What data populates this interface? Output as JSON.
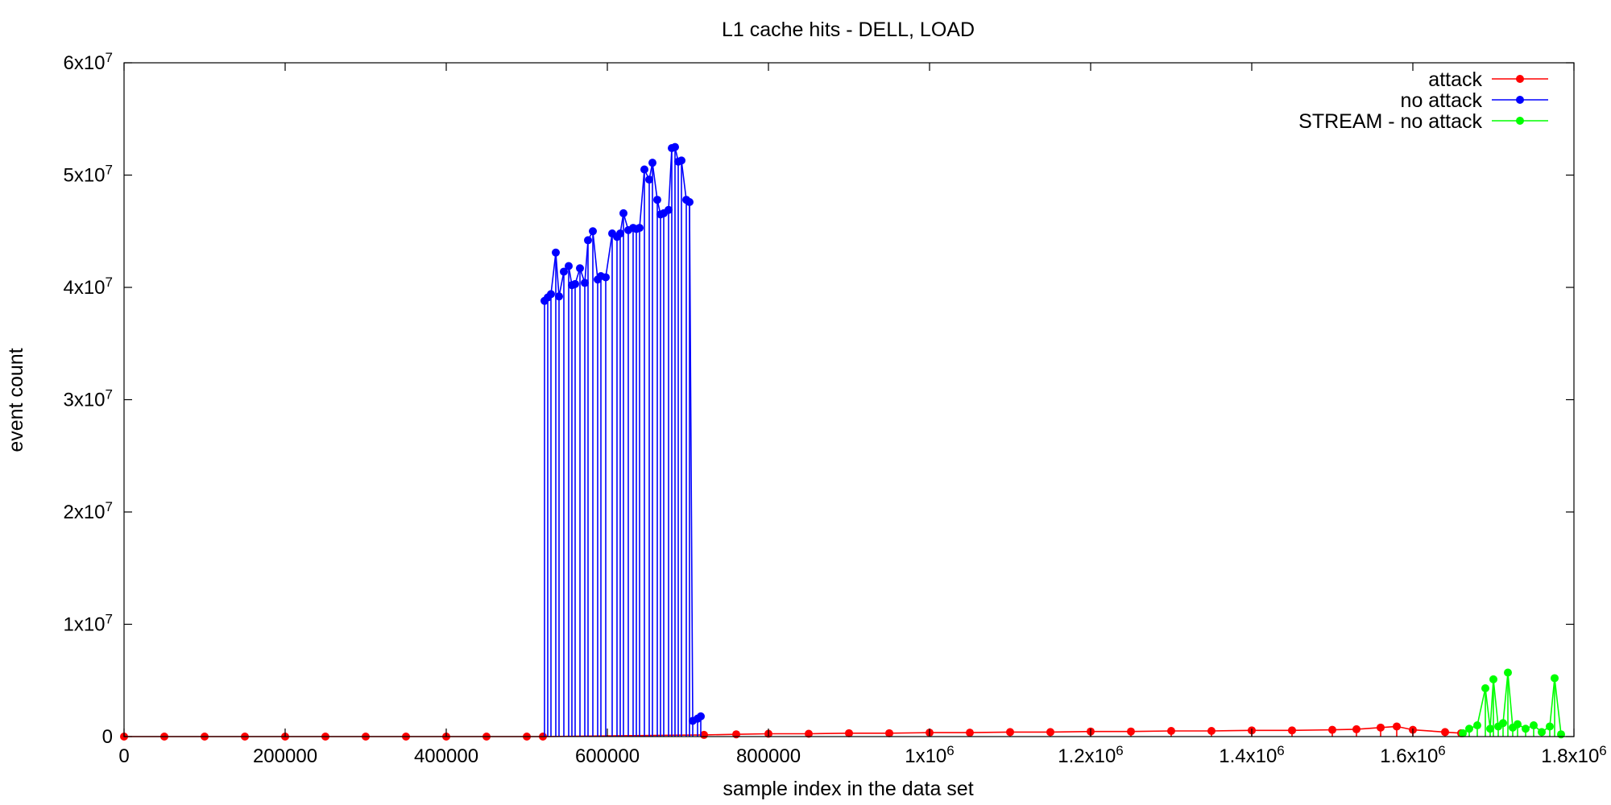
{
  "chart_data": {
    "type": "line",
    "title": "L1 cache hits - DELL, LOAD",
    "xlabel": "sample index in the data set",
    "ylabel": "event count",
    "xlim": [
      0,
      1800000
    ],
    "ylim": [
      0,
      60000000
    ],
    "grid": false,
    "legend_position": "top-right",
    "x_ticks": [
      {
        "value": 0,
        "label": "0"
      },
      {
        "value": 200000,
        "label": "200000"
      },
      {
        "value": 400000,
        "label": "400000"
      },
      {
        "value": 600000,
        "label": "600000"
      },
      {
        "value": 800000,
        "label": "800000"
      },
      {
        "value": 1000000,
        "label": "1x10",
        "sup": "6"
      },
      {
        "value": 1200000,
        "label": "1.2x10",
        "sup": "6"
      },
      {
        "value": 1400000,
        "label": "1.4x10",
        "sup": "6"
      },
      {
        "value": 1600000,
        "label": "1.6x10",
        "sup": "6"
      },
      {
        "value": 1800000,
        "label": "1.8x10",
        "sup": "6"
      }
    ],
    "y_ticks": [
      {
        "value": 0,
        "label": "0"
      },
      {
        "value": 10000000,
        "label": "1x10",
        "sup": "7"
      },
      {
        "value": 20000000,
        "label": "2x10",
        "sup": "7"
      },
      {
        "value": 30000000,
        "label": "3x10",
        "sup": "7"
      },
      {
        "value": 40000000,
        "label": "4x10",
        "sup": "7"
      },
      {
        "value": 50000000,
        "label": "5x10",
        "sup": "7"
      },
      {
        "value": 60000000,
        "label": "6x10",
        "sup": "7"
      }
    ],
    "series": [
      {
        "name": "attack",
        "color": "#ff0000",
        "x": [
          0,
          50000,
          100000,
          150000,
          200000,
          250000,
          300000,
          350000,
          400000,
          450000,
          500000,
          520000,
          720000,
          760000,
          800000,
          850000,
          900000,
          950000,
          1000000,
          1050000,
          1100000,
          1150000,
          1200000,
          1250000,
          1300000,
          1350000,
          1400000,
          1450000,
          1500000,
          1530000,
          1560000,
          1580000,
          1600000,
          1640000,
          1660000
        ],
        "y": [
          0,
          0,
          0,
          0,
          0,
          0,
          0,
          0,
          0,
          0,
          0,
          0,
          150000,
          200000,
          250000,
          250000,
          300000,
          300000,
          350000,
          350000,
          400000,
          400000,
          450000,
          450000,
          500000,
          500000,
          550000,
          550000,
          600000,
          650000,
          800000,
          900000,
          600000,
          400000,
          300000
        ]
      },
      {
        "name": "no attack",
        "color": "#0000ff",
        "x": [
          522000,
          526000,
          530000,
          536000,
          540000,
          546000,
          552000,
          556000,
          560000,
          566000,
          572000,
          576000,
          582000,
          588000,
          592000,
          598000,
          606000,
          612000,
          616000,
          620000,
          626000,
          632000,
          636000,
          640000,
          646000,
          652000,
          656000,
          662000,
          666000,
          670000,
          676000,
          680000,
          684000,
          688000,
          692000,
          698000,
          702000,
          706000,
          712000,
          716000
        ],
        "y": [
          38800000,
          39100000,
          39400000,
          43100000,
          39200000,
          41400000,
          41900000,
          40200000,
          40300000,
          41700000,
          40400000,
          44200000,
          45000000,
          40700000,
          41000000,
          40900000,
          44800000,
          44500000,
          44800000,
          46600000,
          45100000,
          45300000,
          45200000,
          45300000,
          50500000,
          49600000,
          51100000,
          47800000,
          46500000,
          46600000,
          46900000,
          52400000,
          52500000,
          51200000,
          51300000,
          47800000,
          47600000,
          1400000,
          1600000,
          1800000
        ]
      },
      {
        "name": "STREAM - no attack",
        "color": "#00ff00",
        "x": [
          1662000,
          1670000,
          1680000,
          1690000,
          1696000,
          1700000,
          1706000,
          1712000,
          1718000,
          1724000,
          1730000,
          1740000,
          1750000,
          1760000,
          1770000,
          1776000,
          1784000
        ],
        "y": [
          300000,
          700000,
          1000000,
          4300000,
          700000,
          5100000,
          900000,
          1200000,
          5700000,
          800000,
          1100000,
          700000,
          1000000,
          400000,
          900000,
          5200000,
          200000
        ]
      }
    ]
  }
}
